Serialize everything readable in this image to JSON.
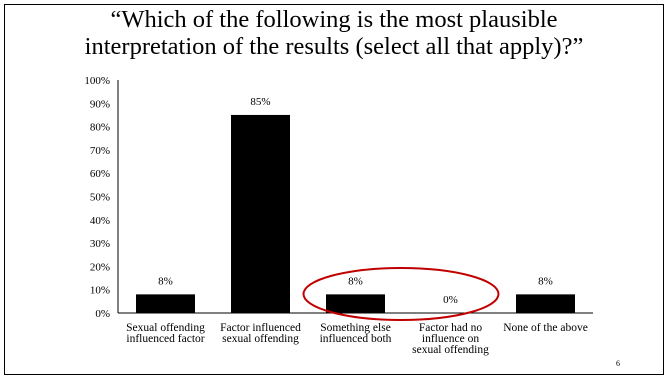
{
  "slide": {
    "title_lines": [
      "“Which of the following is the most plausible",
      "interpretation of the results (select all that apply)?”"
    ],
    "page_number": "6"
  },
  "chart_data": {
    "type": "bar",
    "categories": [
      [
        "Sexual offending",
        "influenced factor"
      ],
      [
        "Factor influenced",
        "sexual offending"
      ],
      [
        "Something else",
        "influenced both"
      ],
      [
        "Factor had no",
        "influence on",
        "sexual offending"
      ],
      [
        "None of the above"
      ]
    ],
    "values": [
      8,
      85,
      8,
      0,
      8
    ],
    "data_labels": [
      "8%",
      "85%",
      "8%",
      "0%",
      "8%"
    ],
    "y_ticks": [
      "0%",
      "10%",
      "20%",
      "30%",
      "40%",
      "50%",
      "60%",
      "70%",
      "80%",
      "90%",
      "100%"
    ],
    "ylim": [
      0,
      100
    ],
    "bar_color": "#000000",
    "highlight": {
      "shape": "ellipse",
      "color": "#c00000",
      "around_categories": [
        2,
        3
      ]
    }
  }
}
